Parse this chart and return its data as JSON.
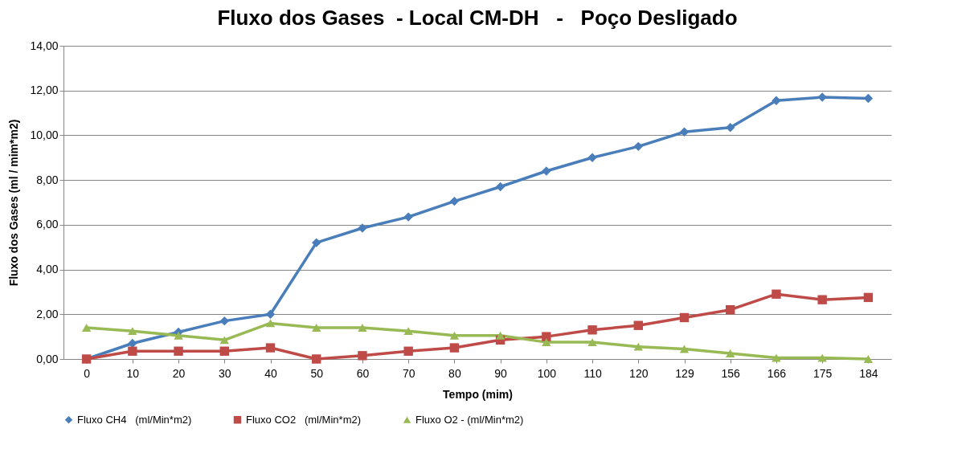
{
  "chart_data": {
    "type": "line",
    "title": "Fluxo dos Gases  - Local CM-DH   -   Poço Desligado",
    "xlabel": "Tempo (mim)",
    "ylabel": "Fluxo dos Gases (ml / mim*m2)",
    "categories": [
      "0",
      "10",
      "20",
      "30",
      "40",
      "50",
      "60",
      "70",
      "80",
      "90",
      "100",
      "110",
      "120",
      "129",
      "156",
      "166",
      "175",
      "184"
    ],
    "series": [
      {
        "name": "Fluxo CH4   (ml/Min*m2)",
        "color": "#4a7ebb",
        "marker": "diamond",
        "values": [
          0,
          0.7,
          1.2,
          1.7,
          2.0,
          5.2,
          5.85,
          6.35,
          7.05,
          7.7,
          8.4,
          9.0,
          9.5,
          10.15,
          10.35,
          11.55,
          11.7,
          11.65
        ]
      },
      {
        "name": "Fluxo CO2   (ml/Min*m2)",
        "color": "#be4b48",
        "marker": "square",
        "values": [
          0,
          0.35,
          0.35,
          0.35,
          0.5,
          0,
          0.15,
          0.35,
          0.5,
          0.85,
          1.0,
          1.3,
          1.5,
          1.85,
          2.2,
          2.9,
          2.65,
          2.75
        ]
      },
      {
        "name": "Fluxo O2 - (ml/Min*m2)",
        "color": "#98b954",
        "marker": "triangle",
        "values": [
          1.4,
          1.25,
          1.05,
          0.85,
          1.6,
          1.4,
          1.4,
          1.25,
          1.05,
          1.05,
          0.75,
          0.75,
          0.55,
          0.45,
          0.25,
          0.05,
          0.05,
          0.0
        ]
      }
    ],
    "ylim": [
      0,
      14
    ],
    "yticks": [
      {
        "value": 0,
        "label": "0,00"
      },
      {
        "value": 2,
        "label": "2,00"
      },
      {
        "value": 4,
        "label": "4,00"
      },
      {
        "value": 6,
        "label": "6,00"
      },
      {
        "value": 8,
        "label": "8,00"
      },
      {
        "value": 10,
        "label": "10,00"
      },
      {
        "value": 12,
        "label": "12,00"
      },
      {
        "value": 14,
        "label": "14,00"
      }
    ],
    "grid": "y",
    "legend": "bottom",
    "line_style": "solid"
  }
}
